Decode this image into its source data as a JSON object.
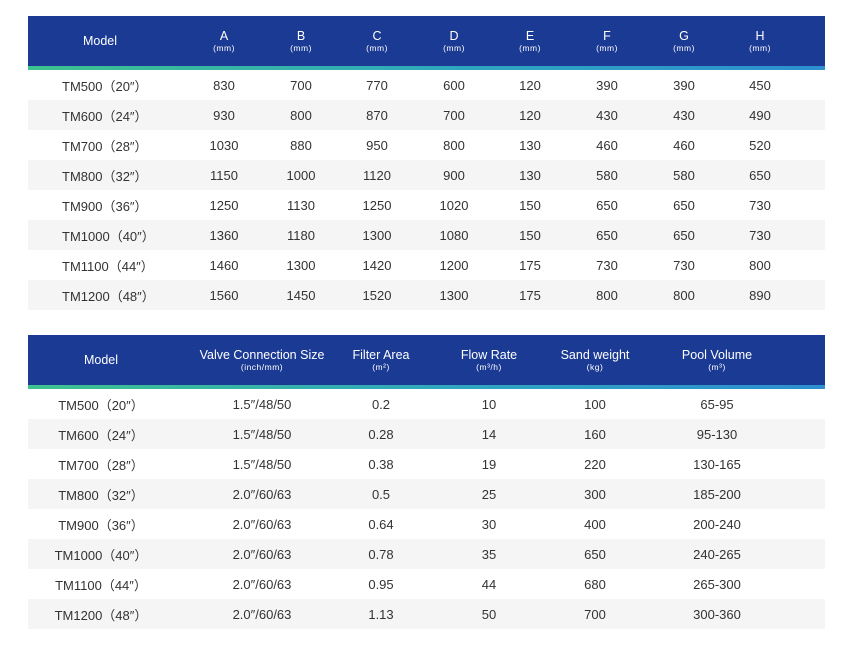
{
  "dimensions_table": {
    "columns": [
      {
        "label": "Model",
        "unit": ""
      },
      {
        "label": "A",
        "unit": "(mm)"
      },
      {
        "label": "B",
        "unit": "(mm)"
      },
      {
        "label": "C",
        "unit": "(mm)"
      },
      {
        "label": "D",
        "unit": "(mm)"
      },
      {
        "label": "E",
        "unit": "(mm)"
      },
      {
        "label": "F",
        "unit": "(mm)"
      },
      {
        "label": "G",
        "unit": "(mm)"
      },
      {
        "label": "H",
        "unit": "(mm)"
      }
    ],
    "rows": [
      [
        "TM500（20″）",
        "830",
        "700",
        "770",
        "600",
        "120",
        "390",
        "390",
        "450"
      ],
      [
        "TM600（24″）",
        "930",
        "800",
        "870",
        "700",
        "120",
        "430",
        "430",
        "490"
      ],
      [
        "TM700（28″）",
        "1030",
        "880",
        "950",
        "800",
        "130",
        "460",
        "460",
        "520"
      ],
      [
        "TM800（32″）",
        "1150",
        "1000",
        "1120",
        "900",
        "130",
        "580",
        "580",
        "650"
      ],
      [
        "TM900（36″）",
        "1250",
        "1130",
        "1250",
        "1020",
        "150",
        "650",
        "650",
        "730"
      ],
      [
        "TM1000（40″）",
        "1360",
        "1180",
        "1300",
        "1080",
        "150",
        "650",
        "650",
        "730"
      ],
      [
        "TM1100（44″）",
        "1460",
        "1300",
        "1420",
        "1200",
        "175",
        "730",
        "730",
        "800"
      ],
      [
        "TM1200（48″）",
        "1560",
        "1450",
        "1520",
        "1300",
        "175",
        "800",
        "800",
        "890"
      ]
    ]
  },
  "performance_table": {
    "columns": [
      {
        "label": "Model",
        "unit": ""
      },
      {
        "label": "Valve Connection Size",
        "unit": "(inch/mm)"
      },
      {
        "label": "Filter Area",
        "unit": "(m²)"
      },
      {
        "label": "Flow Rate",
        "unit": "(m³/h)"
      },
      {
        "label": "Sand weight",
        "unit": "(kg)"
      },
      {
        "label": "Pool Volume",
        "unit": "(m³)"
      }
    ],
    "rows": [
      [
        "TM500（20″）",
        "1.5″/48/50",
        "0.2",
        "10",
        "100",
        "65-95"
      ],
      [
        "TM600（24″）",
        "1.5″/48/50",
        "0.28",
        "14",
        "160",
        "95-130"
      ],
      [
        "TM700（28″）",
        "1.5″/48/50",
        "0.38",
        "19",
        "220",
        "130-165"
      ],
      [
        "TM800（32″）",
        "2.0″/60/63",
        "0.5",
        "25",
        "300",
        "185-200"
      ],
      [
        "TM900（36″）",
        "2.0″/60/63",
        "0.64",
        "30",
        "400",
        "200-240"
      ],
      [
        "TM1000（40″）",
        "2.0″/60/63",
        "0.78",
        "35",
        "650",
        "240-265"
      ],
      [
        "TM1100（44″）",
        "2.0″/60/63",
        "0.95",
        "44",
        "680",
        "265-300"
      ],
      [
        "TM1200（48″）",
        "2.0″/60/63",
        "1.13",
        "50",
        "700",
        "300-360"
      ]
    ]
  },
  "colors": {
    "header_bg": "#1b3a94",
    "stripe_start": "#3ec28f",
    "stripe_end": "#2d8fd0",
    "row_alt_bg": "#f5f5f5"
  }
}
